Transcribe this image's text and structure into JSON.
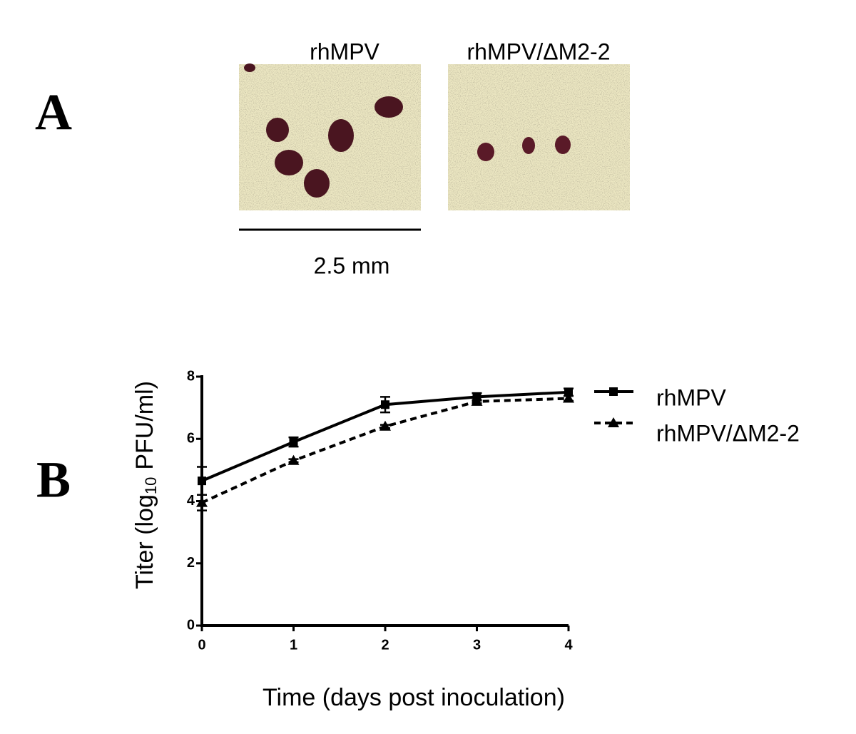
{
  "panel_a": {
    "label": "A",
    "image_titles": [
      "rhMPV",
      "rhMPV/ΔM2-2"
    ],
    "scale_bar": "2.5 mm"
  },
  "panel_b": {
    "label": "B"
  },
  "chart_data": {
    "type": "line",
    "x_label": "Time (days post inoculation)",
    "y_label": {
      "before": "Titer (log",
      "sub": "10",
      "after": "PFU/ml)"
    },
    "x": [
      0,
      1,
      2,
      3,
      4
    ],
    "xlim": [
      0,
      4
    ],
    "xticks": [
      0,
      1,
      2,
      3,
      4
    ],
    "ylim": [
      0,
      8
    ],
    "yticks": [
      0,
      2,
      4,
      6,
      8
    ],
    "series": [
      {
        "name": "rhMPV",
        "color": "#000000",
        "line_style": "solid",
        "marker": "square",
        "values": [
          4.65,
          5.9,
          7.1,
          7.35,
          7.5
        ],
        "errors": [
          0.45,
          0.15,
          0.25,
          0.12,
          0.12
        ]
      },
      {
        "name": "rhMPV/ΔM2-2",
        "color": "#000000",
        "line_style": "dashed",
        "marker": "triangle",
        "values": [
          3.95,
          5.3,
          6.4,
          7.2,
          7.3
        ],
        "errors": [
          0.25,
          0.05,
          0.05,
          0.05,
          0.08
        ]
      }
    ]
  }
}
